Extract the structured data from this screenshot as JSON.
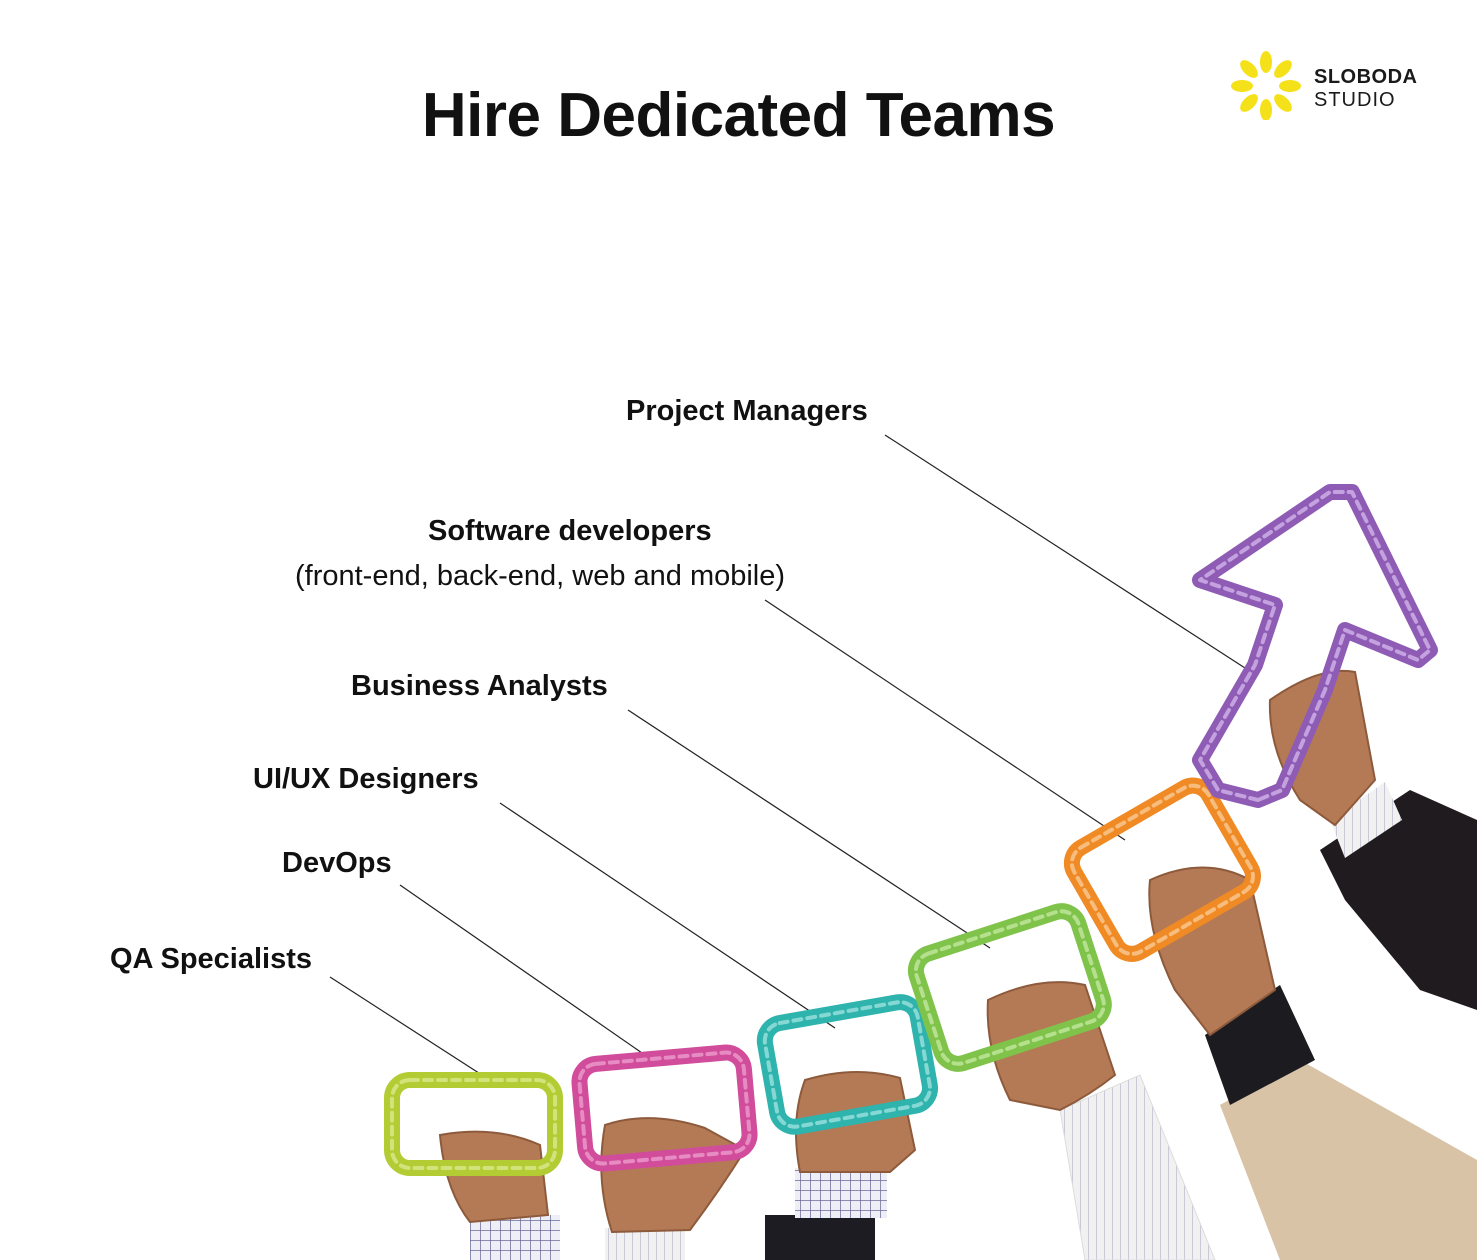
{
  "header": {
    "title": "Hire Dedicated Teams"
  },
  "brand": {
    "name_line1": "SLOBODA",
    "name_line2": "STUDIO",
    "color": "#f5e11a"
  },
  "roles": [
    {
      "label": "Project Managers",
      "color": "#8e5cb5"
    },
    {
      "label": "Software developers",
      "detail": "(front-end, back-end, web and mobile)",
      "color": "#f08a24"
    },
    {
      "label": "Business Analysts",
      "color": "#7fc34a"
    },
    {
      "label": "UI/UX Designers",
      "color": "#2fb3ad"
    },
    {
      "label": "DevOps",
      "color": "#d14c9a"
    },
    {
      "label": "QA Specialists",
      "color": "#b3cc33"
    }
  ]
}
